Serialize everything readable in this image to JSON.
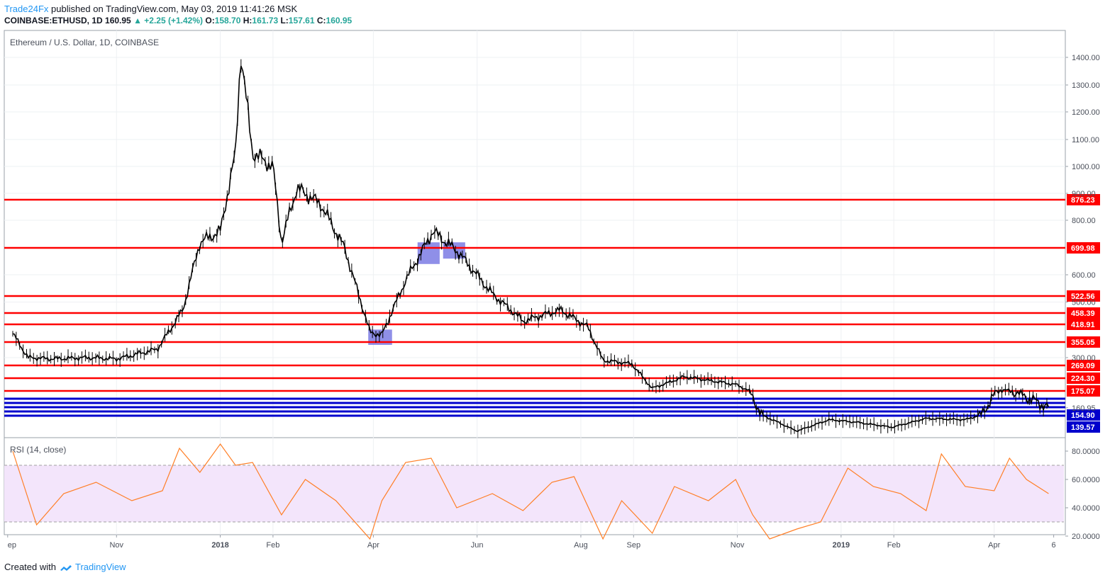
{
  "header": {
    "brand": "Trade24Fx",
    "published": " published on TradingView.com, May 03, 2019 11:41:26 MSK",
    "symbol": "COINBASE:ETHUSD, 1D",
    "last": "160.95",
    "change": "▲ +2.25 (+1.42%)",
    "o_label": "O:",
    "o_value": "158.70",
    "h_label": "H:",
    "h_value": "161.73",
    "l_label": "L:",
    "l_value": "157.61",
    "c_label": "C:",
    "c_value": "160.95"
  },
  "footer": {
    "created": "Created with",
    "tv": "TradingView"
  },
  "colors": {
    "up": "#26a69a",
    "level": "#ff0000",
    "support": "#0000cc",
    "rsi": "#ff7f27",
    "rsi_band": "#f3e5fb",
    "box": "#6a6ae0"
  },
  "chart_data": [
    {
      "type": "line",
      "title": "Ethereum / U.S. Dollar, 1D, COINBASE",
      "x_ticks": [
        "ep",
        "Nov",
        "2018",
        "Feb",
        "Apr",
        "Jun",
        "Aug",
        "Sep",
        "Nov",
        "2019",
        "Feb",
        "Apr",
        "6"
      ],
      "y_ticks": [
        "1400.00",
        "1300.00",
        "1200.00",
        "1100.00",
        "1000.00",
        "900.00",
        "800.00",
        "600.00",
        "500.00",
        "300.00",
        "160.95"
      ],
      "ylim": [
        120,
        1450
      ],
      "series": [
        {
          "x": [
            "2017-09-01",
            "2017-09-10",
            "2017-09-25",
            "2017-10-15",
            "2017-11-01",
            "2017-11-25",
            "2017-12-10",
            "2017-12-20",
            "2018-01-01",
            "2018-01-10",
            "2018-01-13",
            "2018-01-20",
            "2018-02-01",
            "2018-02-06",
            "2018-02-15",
            "2018-03-01",
            "2018-03-15",
            "2018-03-30",
            "2018-04-06",
            "2018-04-20",
            "2018-05-06",
            "2018-05-20",
            "2018-06-10",
            "2018-06-28",
            "2018-07-20",
            "2018-08-05",
            "2018-08-14",
            "2018-08-31",
            "2018-09-12",
            "2018-10-01",
            "2018-10-31",
            "2018-11-20",
            "2018-12-06",
            "2018-12-25",
            "2019-01-10",
            "2019-01-31",
            "2019-02-20",
            "2019-03-15",
            "2019-04-05",
            "2019-04-20",
            "2019-05-03"
          ],
          "values": [
            385,
            300,
            295,
            300,
            295,
            330,
            470,
            720,
            760,
            1050,
            1420,
            1050,
            1000,
            720,
            920,
            860,
            700,
            390,
            380,
            580,
            760,
            690,
            530,
            430,
            470,
            410,
            290,
            275,
            185,
            230,
            200,
            140,
            90,
            135,
            125,
            105,
            140,
            135,
            180,
            170,
            160.95
          ]
        }
      ],
      "levels": [
        {
          "value": 876.23,
          "label": "876.23",
          "color": "#ff0000"
        },
        {
          "value": 699.98,
          "label": "699.98",
          "color": "#ff0000"
        },
        {
          "value": 522.56,
          "label": "522.56",
          "color": "#ff0000"
        },
        {
          "value": 458.39,
          "label": "458.39",
          "color": "#ff0000"
        },
        {
          "value": 418.91,
          "label": "418.91",
          "color": "#ff0000"
        },
        {
          "value": 355.05,
          "label": "355.05",
          "color": "#ff0000"
        },
        {
          "value": 269.09,
          "label": "269.09",
          "color": "#ff0000"
        },
        {
          "value": 224.3,
          "label": "224.30",
          "color": "#ff0000"
        },
        {
          "value": 175.07,
          "label": "175.07",
          "color": "#ff0000"
        },
        {
          "value": 154.9,
          "label": "154.90",
          "color": "#0000cc"
        },
        {
          "value": 139.57,
          "label": "139.57",
          "color": "#0000cc"
        }
      ]
    },
    {
      "type": "line",
      "title": "RSI (14, close)",
      "y_ticks": [
        "80.0000",
        "60.0000",
        "40.0000",
        "20.0000"
      ],
      "ylim": [
        15,
        85
      ],
      "band": [
        30,
        70
      ],
      "series": [
        {
          "x": [
            "2017-09-01",
            "2017-09-15",
            "2017-10-01",
            "2017-10-20",
            "2017-11-10",
            "2017-11-28",
            "2017-12-08",
            "2017-12-20",
            "2018-01-01",
            "2018-01-10",
            "2018-01-20",
            "2018-02-06",
            "2018-02-20",
            "2018-03-10",
            "2018-03-30",
            "2018-04-06",
            "2018-04-20",
            "2018-05-05",
            "2018-05-20",
            "2018-06-10",
            "2018-06-28",
            "2018-07-15",
            "2018-07-28",
            "2018-08-14",
            "2018-08-25",
            "2018-09-12",
            "2018-09-25",
            "2018-10-15",
            "2018-10-31",
            "2018-11-10",
            "2018-11-20",
            "2018-12-06",
            "2018-12-20",
            "2019-01-05",
            "2019-01-20",
            "2019-02-05",
            "2019-02-20",
            "2019-03-01",
            "2019-03-15",
            "2019-04-01",
            "2019-04-10",
            "2019-04-20",
            "2019-05-03"
          ],
          "values": [
            80,
            28,
            50,
            58,
            45,
            52,
            82,
            65,
            85,
            70,
            72,
            35,
            60,
            45,
            18,
            45,
            72,
            75,
            40,
            50,
            38,
            58,
            62,
            18,
            45,
            22,
            55,
            45,
            60,
            35,
            18,
            25,
            30,
            68,
            55,
            50,
            38,
            78,
            55,
            52,
            75,
            60,
            50
          ]
        }
      ]
    }
  ]
}
